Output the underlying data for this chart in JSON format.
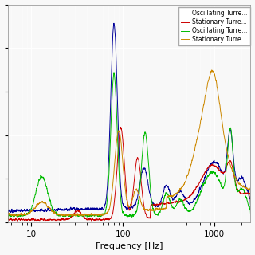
{
  "xlabel": "Frequency [Hz]",
  "legend_labels": [
    "Oscillating Turre...",
    "Stationary Turre...",
    "Oscillating Turre...",
    "Stationary Turre..."
  ],
  "legend_colors": [
    "#000099",
    "#CC0000",
    "#00BB00",
    "#CC8800"
  ],
  "background_color": "#f8f8f8",
  "linewidth": 0.7,
  "xlim": [
    5.5,
    2500
  ],
  "ylim": [
    0,
    1.0
  ]
}
